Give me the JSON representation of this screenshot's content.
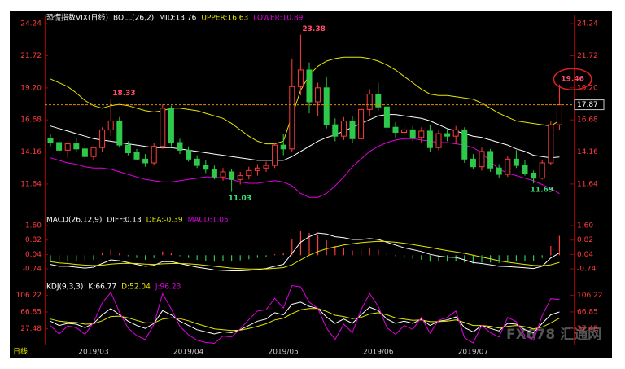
{
  "period_label": "日线",
  "watermark": "FX678 汇通网",
  "chart_data": [
    {
      "type": "candlestick",
      "title": "恐慌指数VIX(日线)",
      "indicator": "BOLL(26,2)",
      "title_color": "#ffffff",
      "categories": [
        null,
        null,
        null,
        null,
        null,
        "2019/03",
        null,
        null,
        null,
        null,
        null,
        null,
        null,
        null,
        null,
        null,
        "2019/04",
        null,
        null,
        null,
        null,
        null,
        null,
        null,
        null,
        null,
        null,
        "2019/05",
        null,
        null,
        null,
        null,
        null,
        null,
        null,
        null,
        null,
        null,
        "2019/06",
        null,
        null,
        null,
        null,
        null,
        null,
        null,
        null,
        null,
        null,
        "2019/07",
        null,
        null,
        null,
        null,
        null,
        null,
        null,
        null,
        null,
        null
      ],
      "candles": [
        [
          15.2,
          15.6,
          14.6,
          14.9
        ],
        [
          14.9,
          15.1,
          14.0,
          14.3
        ],
        [
          14.3,
          14.9,
          13.7,
          14.8
        ],
        [
          14.8,
          15.3,
          14.2,
          14.4
        ],
        [
          14.4,
          14.8,
          13.6,
          13.8
        ],
        [
          13.8,
          14.6,
          13.5,
          14.5
        ],
        [
          14.5,
          16.1,
          14.2,
          15.9
        ],
        [
          15.9,
          18.33,
          15.4,
          16.6
        ],
        [
          16.6,
          16.9,
          14.5,
          14.7
        ],
        [
          14.7,
          15.0,
          13.9,
          14.1
        ],
        [
          14.1,
          14.4,
          13.5,
          13.6
        ],
        [
          13.6,
          14.0,
          13.0,
          13.3
        ],
        [
          13.3,
          14.9,
          13.1,
          14.6
        ],
        [
          14.6,
          17.9,
          14.4,
          17.6
        ],
        [
          17.6,
          17.8,
          14.6,
          14.9
        ],
        [
          14.9,
          15.2,
          14.0,
          14.3
        ],
        [
          14.3,
          14.6,
          13.4,
          13.6
        ],
        [
          13.6,
          13.9,
          12.9,
          13.1
        ],
        [
          13.1,
          13.5,
          12.5,
          12.8
        ],
        [
          12.8,
          13.1,
          12.0,
          12.2
        ],
        [
          12.2,
          12.9,
          11.9,
          12.6
        ],
        [
          12.6,
          12.8,
          11.03,
          12.0
        ],
        [
          12.0,
          12.6,
          11.6,
          12.3
        ],
        [
          12.3,
          13.0,
          12.0,
          12.7
        ],
        [
          12.7,
          13.2,
          12.3,
          12.9
        ],
        [
          12.9,
          13.4,
          12.6,
          13.1
        ],
        [
          13.1,
          14.9,
          12.9,
          14.7
        ],
        [
          14.7,
          15.6,
          13.9,
          14.4
        ],
        [
          14.4,
          21.5,
          14.2,
          19.3
        ],
        [
          19.3,
          23.38,
          18.6,
          20.6
        ],
        [
          20.6,
          21.2,
          17.2,
          18.1
        ],
        [
          18.1,
          19.6,
          17.0,
          19.2
        ],
        [
          19.2,
          20.1,
          16.0,
          16.3
        ],
        [
          16.3,
          16.8,
          15.0,
          15.4
        ],
        [
          15.4,
          16.9,
          15.1,
          16.6
        ],
        [
          16.6,
          17.0,
          14.9,
          15.2
        ],
        [
          15.2,
          17.8,
          15.0,
          17.5
        ],
        [
          17.5,
          19.1,
          17.0,
          18.7
        ],
        [
          18.7,
          19.6,
          17.4,
          17.7
        ],
        [
          17.7,
          18.2,
          15.8,
          16.1
        ],
        [
          16.1,
          16.5,
          15.3,
          15.7
        ],
        [
          15.7,
          16.3,
          15.2,
          15.9
        ],
        [
          15.9,
          16.2,
          15.0,
          15.3
        ],
        [
          15.3,
          16.1,
          14.9,
          15.8
        ],
        [
          15.8,
          16.3,
          14.2,
          14.5
        ],
        [
          14.5,
          15.9,
          14.3,
          15.6
        ],
        [
          15.6,
          16.0,
          15.0,
          15.4
        ],
        [
          15.4,
          16.2,
          14.8,
          15.9
        ],
        [
          15.9,
          16.1,
          13.3,
          13.6
        ],
        [
          13.6,
          14.0,
          12.8,
          13.0
        ],
        [
          13.0,
          14.5,
          12.7,
          14.2
        ],
        [
          14.2,
          14.4,
          12.6,
          12.9
        ],
        [
          12.9,
          13.2,
          12.1,
          12.4
        ],
        [
          12.4,
          13.8,
          12.2,
          13.6
        ],
        [
          13.6,
          14.3,
          12.9,
          13.1
        ],
        [
          13.1,
          13.5,
          12.3,
          12.5
        ],
        [
          12.5,
          12.7,
          11.69,
          12.1
        ],
        [
          12.1,
          13.5,
          12.0,
          13.3
        ],
        [
          13.3,
          16.6,
          13.1,
          16.3
        ],
        [
          16.3,
          19.46,
          15.9,
          17.87
        ]
      ],
      "up_color": "#ff3c3c",
      "down_color": "#2ec84a",
      "annotation_color": "#ff4d6a",
      "marked_highs": [
        7,
        29,
        59
      ],
      "marked_lows": [
        21,
        56
      ],
      "low_label_color": "#3ce07a",
      "circled_high": 59,
      "circle_color": "#e0201e",
      "price_line": true,
      "price_line_color": "#e08a00",
      "series": [
        {
          "name": "MID:13.76",
          "color": "#ffffff",
          "values": [
            16.2,
            16.0,
            15.8,
            15.6,
            15.4,
            15.2,
            15.1,
            15.0,
            14.9,
            14.8,
            14.7,
            14.6,
            14.5,
            14.5,
            14.5,
            14.4,
            14.3,
            14.2,
            14.1,
            14.0,
            13.9,
            13.8,
            13.7,
            13.6,
            13.5,
            13.5,
            13.5,
            13.5,
            13.8,
            14.2,
            14.6,
            15.0,
            15.3,
            15.5,
            15.8,
            16.1,
            16.4,
            16.7,
            17.0,
            17.1,
            17.1,
            17.0,
            16.9,
            16.8,
            16.6,
            16.3,
            16.0,
            15.8,
            15.6,
            15.4,
            15.3,
            15.1,
            14.9,
            14.7,
            14.4,
            14.2,
            13.9,
            13.8,
            13.7,
            13.76
          ]
        },
        {
          "name": "UPPER:16.63",
          "color": "#e6e600",
          "values": [
            19.9,
            19.6,
            19.3,
            18.8,
            18.2,
            17.8,
            17.6,
            17.8,
            17.9,
            17.8,
            17.6,
            17.4,
            17.3,
            17.4,
            17.6,
            17.6,
            17.5,
            17.4,
            17.2,
            17.0,
            16.8,
            16.4,
            15.9,
            15.4,
            15.0,
            14.8,
            14.8,
            15.0,
            17.0,
            19.0,
            20.2,
            20.9,
            21.3,
            21.5,
            21.6,
            21.6,
            21.6,
            21.5,
            21.3,
            21.0,
            20.6,
            20.1,
            19.6,
            19.1,
            18.7,
            18.6,
            18.6,
            18.5,
            18.4,
            18.3,
            18.0,
            17.6,
            17.2,
            16.9,
            16.6,
            16.5,
            16.4,
            16.3,
            16.2,
            16.63
          ]
        },
        {
          "name": "LOWER:10.89",
          "color": "#e000e0",
          "values": [
            13.7,
            13.5,
            13.3,
            13.2,
            13.0,
            12.9,
            12.9,
            12.8,
            12.6,
            12.4,
            12.2,
            12.0,
            11.9,
            11.8,
            11.8,
            11.9,
            12.0,
            12.1,
            12.2,
            12.2,
            12.1,
            12.0,
            11.8,
            11.7,
            11.7,
            11.8,
            11.9,
            11.8,
            11.5,
            10.9,
            10.6,
            10.6,
            10.9,
            11.5,
            12.2,
            13.0,
            13.6,
            14.2,
            14.6,
            14.9,
            15.1,
            15.2,
            15.2,
            15.1,
            15.0,
            14.9,
            14.9,
            14.8,
            14.7,
            14.5,
            14.1,
            13.4,
            12.8,
            12.5,
            12.3,
            12.1,
            11.9,
            11.6,
            11.3,
            10.89
          ]
        }
      ],
      "ylim": [
        9.14,
        24.82
      ],
      "yticks": [
        11.64,
        14.16,
        16.68,
        {
          "value": 19.2,
          "label": "19.20"
        },
        21.72,
        24.24
      ],
      "tick_color": "#ff3c3c",
      "axis_color": "#a00000",
      "grid": false,
      "category_color": "#c8c8c8"
    },
    {
      "type": "macd",
      "indicator": "MACD(26,12,9)",
      "title_color": "#ffffff",
      "up_color": "#ff3c3c",
      "down_color": "#2ec84a",
      "series": [
        {
          "name": "DIFF:0.13",
          "color": "#ffffff",
          "values": [
            -0.5,
            -0.6,
            -0.6,
            -0.65,
            -0.7,
            -0.65,
            -0.45,
            -0.25,
            -0.3,
            -0.4,
            -0.5,
            -0.6,
            -0.55,
            -0.35,
            -0.35,
            -0.45,
            -0.55,
            -0.65,
            -0.72,
            -0.8,
            -0.82,
            -0.85,
            -0.85,
            -0.82,
            -0.78,
            -0.72,
            -0.6,
            -0.5,
            0.1,
            0.7,
            1.0,
            1.2,
            1.15,
            1.0,
            0.95,
            0.85,
            0.85,
            0.9,
            0.85,
            0.7,
            0.55,
            0.4,
            0.3,
            0.2,
            0.05,
            -0.05,
            -0.1,
            -0.12,
            -0.25,
            -0.4,
            -0.45,
            -0.52,
            -0.6,
            -0.62,
            -0.65,
            -0.68,
            -0.72,
            -0.6,
            -0.15,
            0.13
          ]
        },
        {
          "name": "DEA:-0.39",
          "color": "#e6e600",
          "values": [
            -0.35,
            -0.42,
            -0.45,
            -0.5,
            -0.54,
            -0.56,
            -0.54,
            -0.48,
            -0.45,
            -0.44,
            -0.45,
            -0.48,
            -0.5,
            -0.47,
            -0.45,
            -0.45,
            -0.47,
            -0.5,
            -0.55,
            -0.6,
            -0.65,
            -0.7,
            -0.73,
            -0.75,
            -0.75,
            -0.74,
            -0.71,
            -0.67,
            -0.52,
            -0.25,
            0.0,
            0.2,
            0.35,
            0.45,
            0.55,
            0.62,
            0.68,
            0.72,
            0.75,
            0.74,
            0.7,
            0.65,
            0.58,
            0.5,
            0.42,
            0.33,
            0.25,
            0.18,
            0.1,
            0.0,
            -0.1,
            -0.2,
            -0.3,
            -0.38,
            -0.44,
            -0.5,
            -0.55,
            -0.57,
            -0.52,
            -0.39
          ]
        },
        {
          "name": "MACD:1.05",
          "color": "#e000e0",
          "style": "bar",
          "values": [
            -0.3,
            -0.35,
            -0.3,
            -0.3,
            -0.32,
            -0.25,
            0.1,
            0.3,
            0.1,
            -0.05,
            -0.15,
            -0.25,
            -0.15,
            0.2,
            0.1,
            -0.05,
            -0.15,
            -0.25,
            -0.3,
            -0.35,
            -0.3,
            -0.32,
            -0.28,
            -0.22,
            -0.15,
            -0.1,
            0.05,
            0.1,
            0.9,
            1.3,
            1.2,
            1.1,
            0.8,
            0.5,
            0.4,
            0.25,
            0.3,
            0.4,
            0.3,
            0.1,
            -0.05,
            -0.15,
            -0.2,
            -0.25,
            -0.35,
            -0.35,
            -0.35,
            -0.3,
            -0.4,
            -0.45,
            -0.4,
            -0.4,
            -0.42,
            -0.35,
            -0.3,
            -0.3,
            -0.3,
            -0.15,
            0.5,
            1.05
          ]
        }
      ],
      "ylim": [
        -1.4,
        2.0
      ],
      "yticks": [
        {
          "value": 1.6,
          "label": "1.60"
        },
        0.82,
        0.04,
        -0.74
      ],
      "tick_color": "#ff3c3c",
      "axis_color": "#a00000",
      "grid": false
    },
    {
      "type": "line",
      "indicator": "KDJ(9,3,3)",
      "title_color": "#ffffff",
      "series": [
        {
          "name": "K:66.77",
          "color": "#ffffff",
          "values": [
            45,
            35,
            40,
            38,
            30,
            40,
            60,
            75,
            60,
            45,
            35,
            28,
            40,
            70,
            60,
            45,
            35,
            25,
            20,
            15,
            20,
            18,
            25,
            35,
            45,
            50,
            65,
            60,
            85,
            90,
            80,
            75,
            55,
            40,
            50,
            40,
            60,
            78,
            70,
            50,
            40,
            45,
            40,
            50,
            35,
            45,
            48,
            55,
            30,
            20,
            35,
            28,
            22,
            40,
            38,
            25,
            18,
            40,
            60,
            66.77
          ]
        },
        {
          "name": "D:52.04",
          "color": "#e6e600",
          "values": [
            50,
            45,
            43,
            42,
            38,
            39,
            46,
            56,
            57,
            53,
            47,
            41,
            41,
            50,
            53,
            51,
            46,
            39,
            33,
            27,
            25,
            23,
            24,
            28,
            33,
            39,
            48,
            52,
            63,
            72,
            75,
            75,
            68,
            59,
            56,
            51,
            54,
            62,
            65,
            60,
            53,
            50,
            47,
            48,
            44,
            44,
            45,
            48,
            42,
            35,
            35,
            33,
            29,
            33,
            35,
            32,
            27,
            31,
            41,
            52.04
          ]
        },
        {
          "name": "J:96.23",
          "color": "#e000e0",
          "values": [
            35,
            15,
            34,
            30,
            14,
            42,
            88,
            113,
            66,
            29,
            11,
            2,
            38,
            110,
            74,
            33,
            13,
            0,
            -5,
            -7,
            10,
            8,
            27,
            49,
            69,
            72,
            99,
            76,
            129,
            126,
            90,
            75,
            29,
            2,
            38,
            18,
            72,
            110,
            80,
            30,
            14,
            35,
            26,
            54,
            17,
            47,
            54,
            69,
            6,
            -6,
            35,
            18,
            8,
            54,
            44,
            11,
            0,
            58,
            98,
            96.23
          ]
        }
      ],
      "ylim": [
        -8,
        130
      ],
      "yticks": [
        106.22,
        66.85,
        27.48
      ],
      "tick_color": "#ff3c3c",
      "axis_color": "#a00000",
      "grid": false
    }
  ]
}
